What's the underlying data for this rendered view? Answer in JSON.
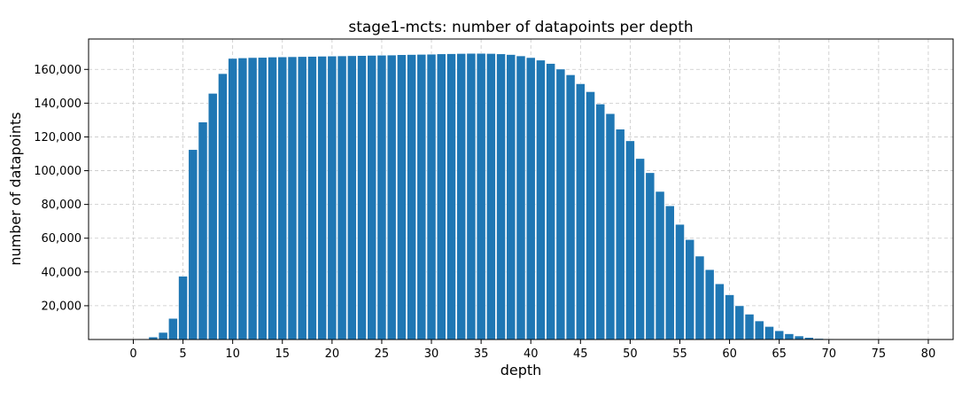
{
  "chart_data": {
    "type": "bar",
    "title": "stage1-mcts: number of datapoints per depth",
    "xlabel": "depth",
    "ylabel": "number of datapoints",
    "color": "#1f77b4",
    "grid": true,
    "grid_style": "dashed",
    "xlim": [
      -4.5,
      82.5
    ],
    "ylim": [
      0,
      178000
    ],
    "xticks": [
      0,
      5,
      10,
      15,
      20,
      25,
      30,
      35,
      40,
      45,
      50,
      55,
      60,
      65,
      70,
      75,
      80
    ],
    "xtick_labels": [
      "0",
      "5",
      "10",
      "15",
      "20",
      "25",
      "30",
      "35",
      "40",
      "45",
      "50",
      "55",
      "60",
      "65",
      "70",
      "75",
      "80"
    ],
    "yticks": [
      20000,
      40000,
      60000,
      80000,
      100000,
      120000,
      140000,
      160000
    ],
    "ytick_labels": [
      "20,000",
      "40,000",
      "60,000",
      "80,000",
      "100,000",
      "120,000",
      "140,000",
      "160,000"
    ],
    "x": [
      0,
      1,
      2,
      3,
      4,
      5,
      6,
      7,
      8,
      9,
      10,
      11,
      12,
      13,
      14,
      15,
      16,
      17,
      18,
      19,
      20,
      21,
      22,
      23,
      24,
      25,
      26,
      27,
      28,
      29,
      30,
      31,
      32,
      33,
      34,
      35,
      36,
      37,
      38,
      39,
      40,
      41,
      42,
      43,
      44,
      45,
      46,
      47,
      48,
      49,
      50,
      51,
      52,
      53,
      54,
      55,
      56,
      57,
      58,
      59,
      60,
      61,
      62,
      63,
      64,
      65,
      66,
      67,
      68,
      69,
      70,
      71,
      72,
      73,
      74,
      75,
      76,
      77,
      78,
      79,
      80,
      81
    ],
    "values": [
      0,
      300,
      1500,
      4200,
      12500,
      37500,
      112500,
      128800,
      145800,
      157500,
      166500,
      166800,
      167000,
      167100,
      167300,
      167400,
      167500,
      167600,
      167700,
      167800,
      167900,
      168000,
      168100,
      168200,
      168300,
      168400,
      168500,
      168700,
      168800,
      168900,
      169000,
      169200,
      169300,
      169400,
      169500,
      169500,
      169400,
      169200,
      168800,
      168000,
      167000,
      165500,
      163500,
      160200,
      156800,
      151500,
      146800,
      139500,
      133800,
      124600,
      117700,
      107200,
      98800,
      87700,
      79200,
      68200,
      59200,
      49400,
      41400,
      33000,
      26500,
      20000,
      15000,
      11000,
      7700,
      5200,
      3400,
      2100,
      1200,
      600,
      300,
      100,
      0,
      0,
      0,
      0,
      0,
      0,
      0,
      0,
      0,
      0
    ]
  }
}
